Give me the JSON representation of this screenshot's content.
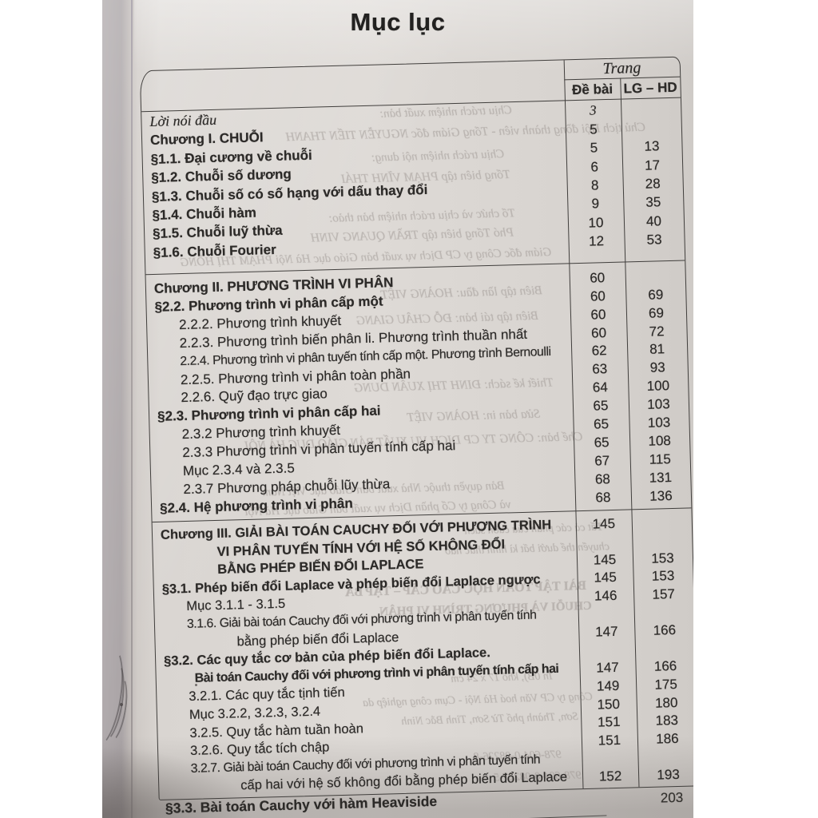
{
  "title": "Mục lục",
  "folio": "203",
  "table": {
    "header": {
      "group": "Trang",
      "col_de_bai": "Đề bài",
      "col_lg_hd": "LG – HD"
    },
    "sections": [
      {
        "rows": [
          {
            "lines": [
              "Lời nói đầu"
            ],
            "level": "intro",
            "de_bai": "3",
            "lg_hd": ""
          },
          {
            "lines": [
              "Chương I. CHUỖI"
            ],
            "level": "chapter",
            "de_bai": "5",
            "lg_hd": ""
          },
          {
            "lines": [
              "§1.1. Đại cương về chuỗi"
            ],
            "level": "section",
            "de_bai": "5",
            "lg_hd": "13"
          },
          {
            "lines": [
              "§1.2. Chuỗi số dương"
            ],
            "level": "section",
            "de_bai": "6",
            "lg_hd": "17"
          },
          {
            "lines": [
              "§1.3. Chuỗi số có số hạng với dấu thay đổi"
            ],
            "level": "section",
            "de_bai": "8",
            "lg_hd": "28"
          },
          {
            "lines": [
              "§1.4. Chuỗi hàm"
            ],
            "level": "section",
            "de_bai": "9",
            "lg_hd": "35"
          },
          {
            "lines": [
              "§1.5. Chuỗi luỹ thừa"
            ],
            "level": "section",
            "de_bai": "10",
            "lg_hd": "40"
          },
          {
            "lines": [
              "§1.6. Chuỗi Fourier"
            ],
            "level": "section",
            "de_bai": "12",
            "lg_hd": "53"
          }
        ]
      },
      {
        "rows": [
          {
            "lines": [
              "Chương II. PHƯƠNG TRÌNH VI PHÂN"
            ],
            "level": "chapter",
            "de_bai": "60",
            "lg_hd": ""
          },
          {
            "lines": [
              "§2.2. Phương trình vi phân cấp một"
            ],
            "level": "section",
            "de_bai": "60",
            "lg_hd": "69"
          },
          {
            "lines": [
              "2.2.2. Phương trình khuyết"
            ],
            "level": "sub",
            "de_bai": "60",
            "lg_hd": "69"
          },
          {
            "lines": [
              "2.2.3. Phương trình biến phân li. Phương trình thuần nhất"
            ],
            "level": "sub",
            "de_bai": "60",
            "lg_hd": "72"
          },
          {
            "lines": [
              "2.2.4. Phương trình vi phân tuyến tính cấp một. Phương trình Bernoulli"
            ],
            "level": "sub",
            "de_bai": "62",
            "lg_hd": "81"
          },
          {
            "lines": [
              "2.2.5. Phương trình vi phân toàn phần"
            ],
            "level": "sub",
            "de_bai": "63",
            "lg_hd": "93"
          },
          {
            "lines": [
              "2.2.6. Quỹ đạo trực giao"
            ],
            "level": "sub",
            "de_bai": "64",
            "lg_hd": "100"
          },
          {
            "lines": [
              "§2.3. Phương trình vi phân cấp hai"
            ],
            "level": "section",
            "de_bai": "65",
            "lg_hd": "103"
          },
          {
            "lines": [
              "2.3.2 Phương trình khuyết"
            ],
            "level": "sub",
            "de_bai": "65",
            "lg_hd": "103"
          },
          {
            "lines": [
              "2.3.3 Phương trình vi phân tuyến tính cấp hai"
            ],
            "level": "sub",
            "de_bai": "65",
            "lg_hd": "108"
          },
          {
            "lines": [
              "Mục 2.3.4 và 2.3.5"
            ],
            "level": "sub",
            "de_bai": "67",
            "lg_hd": "115"
          },
          {
            "lines": [
              "2.3.7 Phương pháp chuỗi lũy thừa"
            ],
            "level": "sub",
            "de_bai": "68",
            "lg_hd": "131"
          },
          {
            "lines": [
              "§2.4. Hệ phương trình vi phân"
            ],
            "level": "section",
            "de_bai": "68",
            "lg_hd": "136"
          }
        ]
      },
      {
        "rows": [
          {
            "lines": [
              "Chương III. GIẢI BÀI TOÁN CAUCHY ĐỐI VỚI PHƯƠNG TRÌNH"
            ],
            "level": "chapter",
            "de_bai": "145",
            "lg_hd": ""
          },
          {
            "lines": [
              "VI PHÂN TUYẾN TÍNH VỚI HỆ SỐ KHÔNG ĐỔI",
              "BẰNG PHÉP BIẾN ĐỔI LAPLACE"
            ],
            "level": "chapter-cont",
            "de_bai": "145",
            "lg_hd": "153"
          },
          {
            "lines": [
              "§3.1. Phép biến đổi Laplace và phép biến đổi Laplace ngược"
            ],
            "level": "section",
            "de_bai": "145",
            "lg_hd": "153"
          },
          {
            "lines": [
              "Mục 3.1.1 - 3.1.5"
            ],
            "level": "sub",
            "de_bai": "146",
            "lg_hd": "157"
          },
          {
            "lines": [
              "3.1.6. Giải bài toán Cauchy đối với phương trình vi phân tuyến tính",
              "bằng phép biến đổi Laplace"
            ],
            "level": "sub",
            "de_bai": "147",
            "lg_hd": "166"
          },
          {
            "lines": [
              "§3.2. Các quy tắc cơ bản của phép biến đổi Laplace.",
              "Bài toán Cauchy đối với phương trình vi phân tuyến tính cấp hai"
            ],
            "level": "section",
            "de_bai": "147",
            "lg_hd": "166"
          },
          {
            "lines": [
              "3.2.1. Các quy tắc tịnh tiến"
            ],
            "level": "sub",
            "de_bai": "149",
            "lg_hd": "175"
          },
          {
            "lines": [
              "Mục 3.2.2, 3.2.3, 3.2.4"
            ],
            "level": "sub",
            "de_bai": "150",
            "lg_hd": "180"
          },
          {
            "lines": [
              "3.2.5. Quy tắc hàm tuần hoàn"
            ],
            "level": "sub",
            "de_bai": "151",
            "lg_hd": "183"
          },
          {
            "lines": [
              "3.2.6. Quy tắc tích chập"
            ],
            "level": "sub",
            "de_bai": "151",
            "lg_hd": "186"
          },
          {
            "lines": [
              "3.2.7. Giải bài toán Cauchy đối với phương trình vi phân tuyến tính",
              "cấp hai với hệ số không đổi bằng phép biến đổi Laplace"
            ],
            "level": "sub",
            "de_bai": "152",
            "lg_hd": "193"
          }
        ]
      }
    ],
    "after_table_row": {
      "label": "§3.3. Bài toán Cauchy với hàm Heaviside"
    }
  },
  "bleed_through_text": [
    "Chịu trách nhiệm xuất bản:",
    "Chủ tịch Hội đồng thành viên - Tổng Giám đốc NGUYỄN TIẾN THANH",
    "Chịu trách nhiệm nội dung:",
    "Tổng biên tập PHẠM VĨNH THÁI",
    "Tổ chức và chịu trách nhiệm bản thảo:",
    "Phó Tổng biên tập TRẦN QUANG VINH",
    "Giám đốc Công ty CP Dịch vụ xuất bản Giáo dục Hà Nội PHẠM THỊ HỒNG",
    "Biên tập lần đầu: HOÀNG VIỆT",
    "Biên tập tái bản: ĐỖ CHÂU GIANG",
    "Thiết kế sách: ĐINH THỊ XUÂN DUNG",
    "Sửa bản in: HOÀNG VIỆT",
    "Chế bản: CÔNG TY CP DỊCH VỤ XUẤT BẢN GIÁO DỤC HÀ NỘI",
    "Bản quyền thuộc Nhà xuất bản Giáo dục Việt Nam",
    "và Công ty Cổ phần Dịch vụ xuất bản Giáo dục Hà Nội",
    "Tất cả các phần của cuốn sách",
    "chuyển thể dưới bất kì hình thức nào",
    "BÀI TẬP TOÁN HỌC CAO CẤP – TẬP BA",
    "CHUỖI VÀ PHƯƠNG TRÌNH VI PHÂN",
    "In 0B), khổ 17 x 24 cm",
    "Công ty CP Văn hoá Hà Nội - Cụm công nghiệp da",
    "Sơn, Thành phố Từ Sơn, Tỉnh Bắc Ninh",
    "978-604-0-08226-8",
    "978-604-0-08227-5"
  ],
  "colors": {
    "page": "#dedad6",
    "ink": "#2c2a28",
    "bleed_ink": "#968f8b",
    "photo_margin": "#aea8aa"
  }
}
